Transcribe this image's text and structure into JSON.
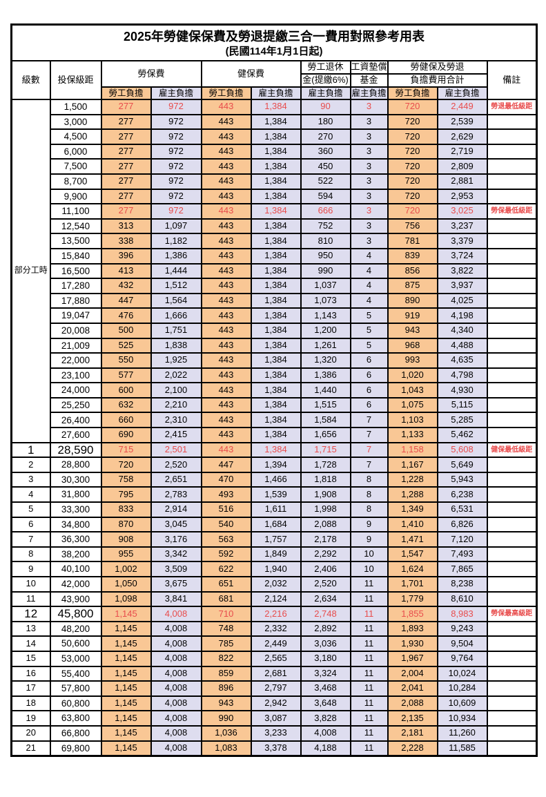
{
  "title": "2025年勞健保保費及勞退提繳三合一費用對照參考用表",
  "subtitle": "(民國114年1月1日起)",
  "colors": {
    "employee_column_bg": "#F9C795",
    "employer_column_bg": "#DEDDEF",
    "highlight_text": "#E84C4C",
    "border": "#000000",
    "page_bg": "#FFFFFF"
  },
  "header": {
    "level": "級數",
    "bracket": "投保級距",
    "labor_insurance": "勞保費",
    "health_insurance": "健保費",
    "pension_line1": "勞工退休",
    "pension_line2": "金(提繳6%)",
    "wage_fund_line1": "工資墊償",
    "wage_fund_line2": "基金",
    "total_line1": "勞健保及勞退",
    "total_line2": "負擔費用合計",
    "employee_burden": "勞工負擔",
    "employer_burden": "雇主負擔",
    "remark": "備註"
  },
  "table": {
    "part_time_label": "部分工時",
    "part_time_row_count": 23,
    "value_col_classes": [
      "emp",
      "er",
      "emp",
      "er",
      "er",
      "er",
      "emp",
      "er"
    ],
    "rows": [
      {
        "level": "",
        "bracket": "1,500",
        "values": [
          "277",
          "972",
          "443",
          "1,384",
          "90",
          "3",
          "720",
          "2,449"
        ],
        "remark": "勞退最低級距",
        "red": true,
        "big": false
      },
      {
        "level": "",
        "bracket": "3,000",
        "values": [
          "277",
          "972",
          "443",
          "1,384",
          "180",
          "3",
          "720",
          "2,539"
        ],
        "remark": "",
        "red": false,
        "big": false
      },
      {
        "level": "",
        "bracket": "4,500",
        "values": [
          "277",
          "972",
          "443",
          "1,384",
          "270",
          "3",
          "720",
          "2,629"
        ],
        "remark": "",
        "red": false,
        "big": false
      },
      {
        "level": "",
        "bracket": "6,000",
        "values": [
          "277",
          "972",
          "443",
          "1,384",
          "360",
          "3",
          "720",
          "2,719"
        ],
        "remark": "",
        "red": false,
        "big": false
      },
      {
        "level": "",
        "bracket": "7,500",
        "values": [
          "277",
          "972",
          "443",
          "1,384",
          "450",
          "3",
          "720",
          "2,809"
        ],
        "remark": "",
        "red": false,
        "big": false
      },
      {
        "level": "",
        "bracket": "8,700",
        "values": [
          "277",
          "972",
          "443",
          "1,384",
          "522",
          "3",
          "720",
          "2,881"
        ],
        "remark": "",
        "red": false,
        "big": false
      },
      {
        "level": "",
        "bracket": "9,900",
        "values": [
          "277",
          "972",
          "443",
          "1,384",
          "594",
          "3",
          "720",
          "2,953"
        ],
        "remark": "",
        "red": false,
        "big": false
      },
      {
        "level": "",
        "bracket": "11,100",
        "values": [
          "277",
          "972",
          "443",
          "1,384",
          "666",
          "3",
          "720",
          "3,025"
        ],
        "remark": "勞保最低級距",
        "red": true,
        "big": false
      },
      {
        "level": "",
        "bracket": "12,540",
        "values": [
          "313",
          "1,097",
          "443",
          "1,384",
          "752",
          "3",
          "756",
          "3,237"
        ],
        "remark": "",
        "red": false,
        "big": false
      },
      {
        "level": "",
        "bracket": "13,500",
        "values": [
          "338",
          "1,182",
          "443",
          "1,384",
          "810",
          "3",
          "781",
          "3,379"
        ],
        "remark": "",
        "red": false,
        "big": false
      },
      {
        "level": "",
        "bracket": "15,840",
        "values": [
          "396",
          "1,386",
          "443",
          "1,384",
          "950",
          "4",
          "839",
          "3,724"
        ],
        "remark": "",
        "red": false,
        "big": false
      },
      {
        "level": "",
        "bracket": "16,500",
        "values": [
          "413",
          "1,444",
          "443",
          "1,384",
          "990",
          "4",
          "856",
          "3,822"
        ],
        "remark": "",
        "red": false,
        "big": false
      },
      {
        "level": "",
        "bracket": "17,280",
        "values": [
          "432",
          "1,512",
          "443",
          "1,384",
          "1,037",
          "4",
          "875",
          "3,937"
        ],
        "remark": "",
        "red": false,
        "big": false
      },
      {
        "level": "",
        "bracket": "17,880",
        "values": [
          "447",
          "1,564",
          "443",
          "1,384",
          "1,073",
          "4",
          "890",
          "4,025"
        ],
        "remark": "",
        "red": false,
        "big": false
      },
      {
        "level": "",
        "bracket": "19,047",
        "values": [
          "476",
          "1,666",
          "443",
          "1,384",
          "1,143",
          "5",
          "919",
          "4,198"
        ],
        "remark": "",
        "red": false,
        "big": false
      },
      {
        "level": "",
        "bracket": "20,008",
        "values": [
          "500",
          "1,751",
          "443",
          "1,384",
          "1,200",
          "5",
          "943",
          "4,340"
        ],
        "remark": "",
        "red": false,
        "big": false
      },
      {
        "level": "",
        "bracket": "21,009",
        "values": [
          "525",
          "1,838",
          "443",
          "1,384",
          "1,261",
          "5",
          "968",
          "4,488"
        ],
        "remark": "",
        "red": false,
        "big": false
      },
      {
        "level": "",
        "bracket": "22,000",
        "values": [
          "550",
          "1,925",
          "443",
          "1,384",
          "1,320",
          "6",
          "993",
          "4,635"
        ],
        "remark": "",
        "red": false,
        "big": false
      },
      {
        "level": "",
        "bracket": "23,100",
        "values": [
          "577",
          "2,022",
          "443",
          "1,384",
          "1,386",
          "6",
          "1,020",
          "4,798"
        ],
        "remark": "",
        "red": false,
        "big": false
      },
      {
        "level": "",
        "bracket": "24,000",
        "values": [
          "600",
          "2,100",
          "443",
          "1,384",
          "1,440",
          "6",
          "1,043",
          "4,930"
        ],
        "remark": "",
        "red": false,
        "big": false
      },
      {
        "level": "",
        "bracket": "25,250",
        "values": [
          "632",
          "2,210",
          "443",
          "1,384",
          "1,515",
          "6",
          "1,075",
          "5,115"
        ],
        "remark": "",
        "red": false,
        "big": false
      },
      {
        "level": "",
        "bracket": "26,400",
        "values": [
          "660",
          "2,310",
          "443",
          "1,384",
          "1,584",
          "7",
          "1,103",
          "5,285"
        ],
        "remark": "",
        "red": false,
        "big": false
      },
      {
        "level": "",
        "bracket": "27,600",
        "values": [
          "690",
          "2,415",
          "443",
          "1,384",
          "1,656",
          "7",
          "1,133",
          "5,462"
        ],
        "remark": "",
        "red": false,
        "big": false
      },
      {
        "level": "1",
        "bracket": "28,590",
        "values": [
          "715",
          "2,501",
          "443",
          "1,384",
          "1,715",
          "7",
          "1,158",
          "5,608"
        ],
        "remark": "健保最低級距",
        "red": true,
        "big": true
      },
      {
        "level": "2",
        "bracket": "28,800",
        "values": [
          "720",
          "2,520",
          "447",
          "1,394",
          "1,728",
          "7",
          "1,167",
          "5,649"
        ],
        "remark": "",
        "red": false,
        "big": false
      },
      {
        "level": "3",
        "bracket": "30,300",
        "values": [
          "758",
          "2,651",
          "470",
          "1,466",
          "1,818",
          "8",
          "1,228",
          "5,943"
        ],
        "remark": "",
        "red": false,
        "big": false
      },
      {
        "level": "4",
        "bracket": "31,800",
        "values": [
          "795",
          "2,783",
          "493",
          "1,539",
          "1,908",
          "8",
          "1,288",
          "6,238"
        ],
        "remark": "",
        "red": false,
        "big": false
      },
      {
        "level": "5",
        "bracket": "33,300",
        "values": [
          "833",
          "2,914",
          "516",
          "1,611",
          "1,998",
          "8",
          "1,349",
          "6,531"
        ],
        "remark": "",
        "red": false,
        "big": false
      },
      {
        "level": "6",
        "bracket": "34,800",
        "values": [
          "870",
          "3,045",
          "540",
          "1,684",
          "2,088",
          "9",
          "1,410",
          "6,826"
        ],
        "remark": "",
        "red": false,
        "big": false
      },
      {
        "level": "7",
        "bracket": "36,300",
        "values": [
          "908",
          "3,176",
          "563",
          "1,757",
          "2,178",
          "9",
          "1,471",
          "7,120"
        ],
        "remark": "",
        "red": false,
        "big": false
      },
      {
        "level": "8",
        "bracket": "38,200",
        "values": [
          "955",
          "3,342",
          "592",
          "1,849",
          "2,292",
          "10",
          "1,547",
          "7,493"
        ],
        "remark": "",
        "red": false,
        "big": false
      },
      {
        "level": "9",
        "bracket": "40,100",
        "values": [
          "1,002",
          "3,509",
          "622",
          "1,940",
          "2,406",
          "10",
          "1,624",
          "7,865"
        ],
        "remark": "",
        "red": false,
        "big": false
      },
      {
        "level": "10",
        "bracket": "42,000",
        "values": [
          "1,050",
          "3,675",
          "651",
          "2,032",
          "2,520",
          "11",
          "1,701",
          "8,238"
        ],
        "remark": "",
        "red": false,
        "big": false
      },
      {
        "level": "11",
        "bracket": "43,900",
        "values": [
          "1,098",
          "3,841",
          "681",
          "2,124",
          "2,634",
          "11",
          "1,779",
          "8,610"
        ],
        "remark": "",
        "red": false,
        "big": false
      },
      {
        "level": "12",
        "bracket": "45,800",
        "values": [
          "1,145",
          "4,008",
          "710",
          "2,216",
          "2,748",
          "11",
          "1,855",
          "8,983"
        ],
        "remark": "勞保最高級距",
        "red": true,
        "big": true
      },
      {
        "level": "13",
        "bracket": "48,200",
        "values": [
          "1,145",
          "4,008",
          "748",
          "2,332",
          "2,892",
          "11",
          "1,893",
          "9,243"
        ],
        "remark": "",
        "red": false,
        "big": false
      },
      {
        "level": "14",
        "bracket": "50,600",
        "values": [
          "1,145",
          "4,008",
          "785",
          "2,449",
          "3,036",
          "11",
          "1,930",
          "9,504"
        ],
        "remark": "",
        "red": false,
        "big": false
      },
      {
        "level": "15",
        "bracket": "53,000",
        "values": [
          "1,145",
          "4,008",
          "822",
          "2,565",
          "3,180",
          "11",
          "1,967",
          "9,764"
        ],
        "remark": "",
        "red": false,
        "big": false
      },
      {
        "level": "16",
        "bracket": "55,400",
        "values": [
          "1,145",
          "4,008",
          "859",
          "2,681",
          "3,324",
          "11",
          "2,004",
          "10,024"
        ],
        "remark": "",
        "red": false,
        "big": false
      },
      {
        "level": "17",
        "bracket": "57,800",
        "values": [
          "1,145",
          "4,008",
          "896",
          "2,797",
          "3,468",
          "11",
          "2,041",
          "10,284"
        ],
        "remark": "",
        "red": false,
        "big": false
      },
      {
        "level": "18",
        "bracket": "60,800",
        "values": [
          "1,145",
          "4,008",
          "943",
          "2,942",
          "3,648",
          "11",
          "2,088",
          "10,609"
        ],
        "remark": "",
        "red": false,
        "big": false
      },
      {
        "level": "19",
        "bracket": "63,800",
        "values": [
          "1,145",
          "4,008",
          "990",
          "3,087",
          "3,828",
          "11",
          "2,135",
          "10,934"
        ],
        "remark": "",
        "red": false,
        "big": false
      },
      {
        "level": "20",
        "bracket": "66,800",
        "values": [
          "1,145",
          "4,008",
          "1,036",
          "3,233",
          "4,008",
          "11",
          "2,181",
          "11,260"
        ],
        "remark": "",
        "red": false,
        "big": false
      },
      {
        "level": "21",
        "bracket": "69,800",
        "values": [
          "1,145",
          "4,008",
          "1,083",
          "3,378",
          "4,188",
          "11",
          "2,228",
          "11,585"
        ],
        "remark": "",
        "red": false,
        "big": false
      }
    ]
  }
}
